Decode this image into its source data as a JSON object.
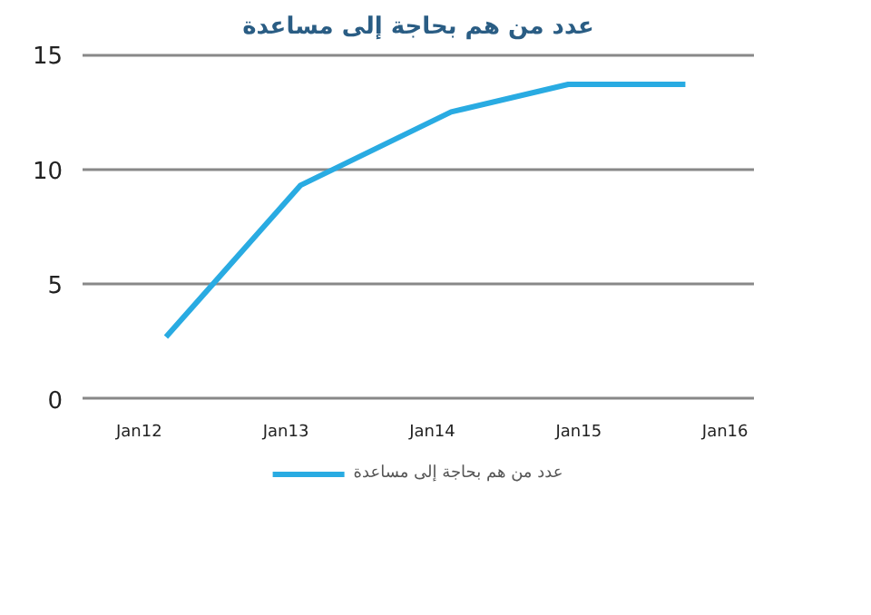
{
  "chart_data": {
    "type": "line",
    "title": "عدد من هم بحاجة إلى مساعدة",
    "x": [
      "2012-03-08",
      "2013-02-06",
      "2014-02-17",
      "2014-12-06",
      "2015-09-24"
    ],
    "series": [
      {
        "name": "عدد من هم بحاجة إلى مساعدة",
        "color": "#29abe2",
        "values": [
          2.7,
          9.3,
          12.5,
          13.7,
          13.7
        ]
      }
    ],
    "xlim": [
      "2011-08-13",
      "2016-03-13"
    ],
    "xticks": [
      {
        "value": "2012-01-01",
        "label": "Jan12"
      },
      {
        "value": "2013-01-01",
        "label": "Jan13"
      },
      {
        "value": "2014-01-01",
        "label": "Jan14"
      },
      {
        "value": "2015-01-01",
        "label": "Jan15"
      },
      {
        "value": "2016-01-01",
        "label": "Jan16"
      }
    ],
    "ylim": [
      -0.2,
      15.2
    ],
    "yticks": [
      0,
      5,
      10,
      15
    ],
    "grid": "y",
    "legend": "bottom",
    "line_style": "solid"
  }
}
